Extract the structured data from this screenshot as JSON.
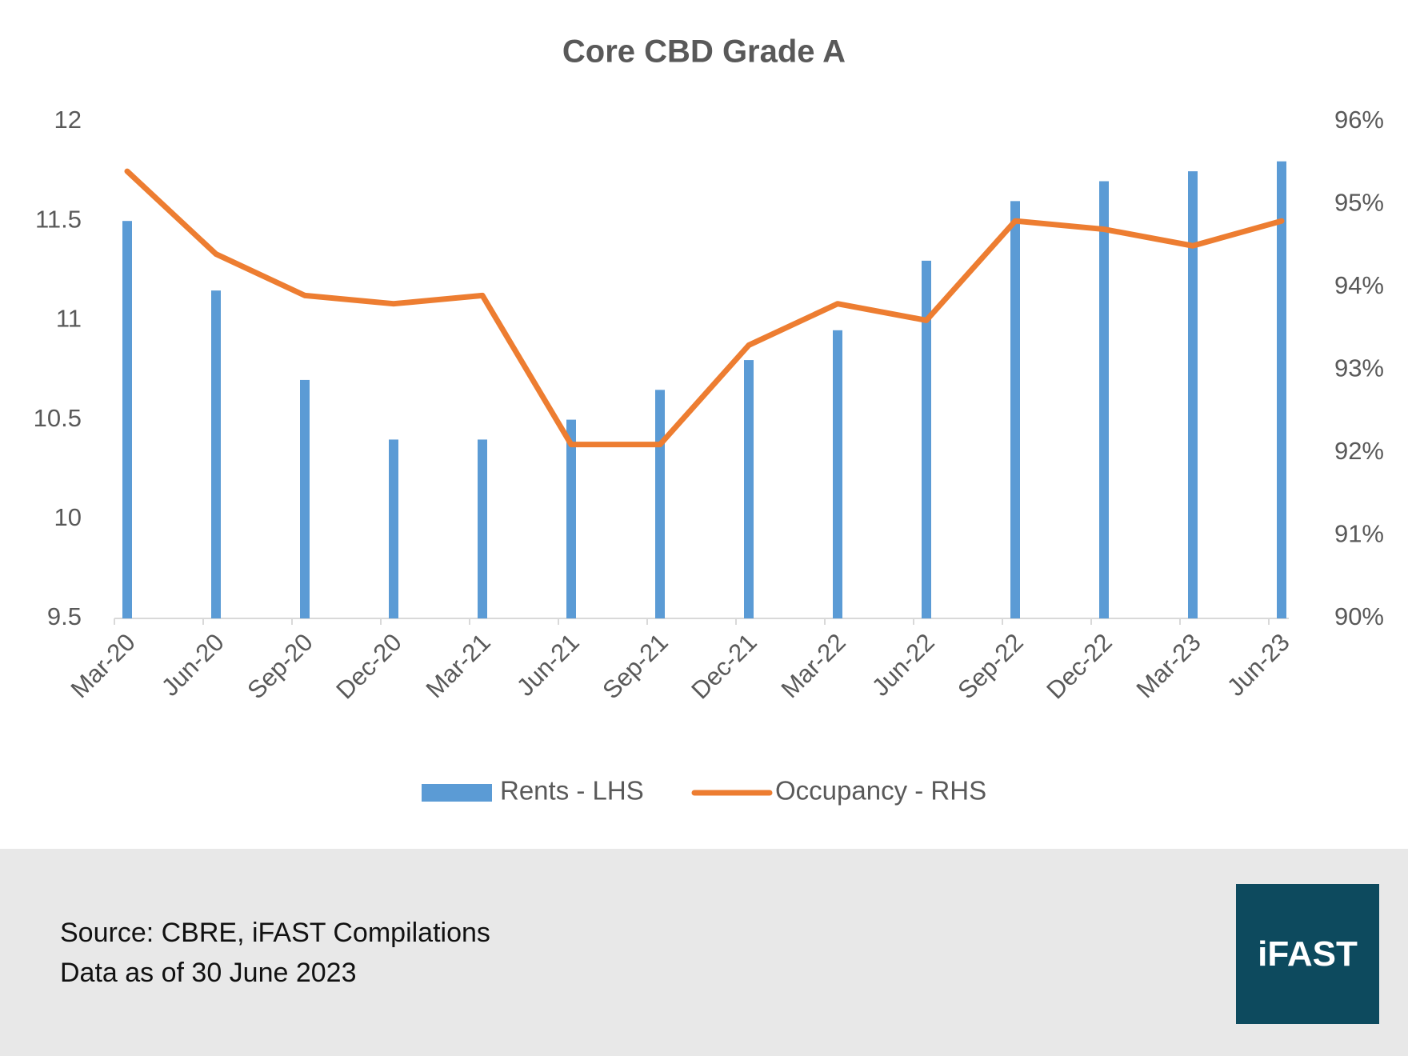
{
  "chart_data": {
    "type": "combo",
    "title": "Core CBD Grade A",
    "categories": [
      "Mar-20",
      "Jun-20",
      "Sep-20",
      "Dec-20",
      "Mar-21",
      "Jun-21",
      "Sep-21",
      "Dec-21",
      "Mar-22",
      "Jun-22",
      "Sep-22",
      "Dec-22",
      "Mar-23",
      "Jun-23"
    ],
    "series": [
      {
        "name": "Rents - LHS",
        "type": "bar",
        "color": "#5b9bd5",
        "values": [
          11.5,
          11.15,
          10.7,
          10.4,
          10.4,
          10.5,
          10.65,
          10.8,
          10.95,
          11.3,
          11.6,
          11.7,
          11.75,
          11.8
        ]
      },
      {
        "name": "Occupancy - RHS",
        "type": "line",
        "axis": "y2",
        "color": "#ed7d31",
        "values": [
          95.4,
          94.4,
          93.9,
          93.8,
          93.9,
          92.1,
          92.1,
          93.3,
          93.8,
          93.6,
          94.8,
          94.7,
          94.5,
          94.8
        ]
      }
    ],
    "ylim": [
      9.5,
      12
    ],
    "yticks": [
      9.5,
      10,
      10.5,
      11,
      11.5,
      12
    ],
    "y2lim": [
      90,
      96
    ],
    "y2ticks": [
      {
        "value": 90,
        "label": "90%"
      },
      {
        "value": 91,
        "label": "91%"
      },
      {
        "value": 92,
        "label": "92%"
      },
      {
        "value": 93,
        "label": "93%"
      },
      {
        "value": 94,
        "label": "94%"
      },
      {
        "value": 95,
        "label": "95%"
      },
      {
        "value": 96,
        "label": "96%"
      }
    ],
    "grid": false,
    "legend": "bottom"
  },
  "footer": {
    "source": "Source: CBRE, iFAST Compilations",
    "data_as_of": "Data as of 30 June 2023",
    "logo": "iFAST"
  }
}
